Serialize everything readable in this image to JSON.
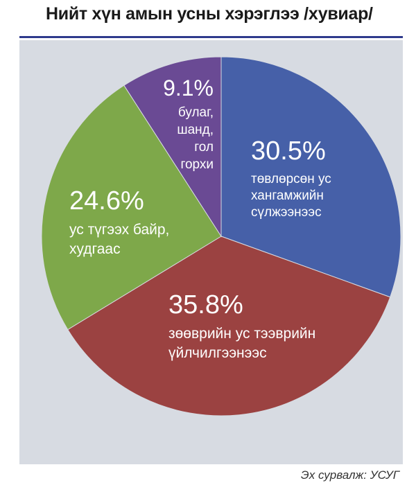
{
  "title": "Нийт хүн амын усны хэрэглээ /хувиар/",
  "source": "Эх сурвалж: УСУГ",
  "chart_data": {
    "type": "pie",
    "title": "Нийт хүн амын усны хэрэглээ /хувиар/",
    "start_angle_deg": 0,
    "direction": "clockwise",
    "slices": [
      {
        "value": 30.5,
        "percent_label": "30.5%",
        "label_lines": [
          "төвлөрсөн ус",
          "хангамжийн",
          "сүлжээнээс"
        ],
        "color": "#4660a8"
      },
      {
        "value": 35.8,
        "percent_label": "35.8%",
        "label_lines": [
          "зөөврийн ус тээврийн",
          "үйлчилгээнээс"
        ],
        "color": "#9b4241"
      },
      {
        "value": 24.6,
        "percent_label": "24.6%",
        "label_lines": [
          "ус түгээх байр,",
          "худгаас"
        ],
        "color": "#7ea84a"
      },
      {
        "value": 9.1,
        "percent_label": "9.1%",
        "label_lines": [
          "булаг,",
          "шанд,",
          "гол",
          "горхи"
        ],
        "color": "#6a4a94"
      }
    ]
  }
}
